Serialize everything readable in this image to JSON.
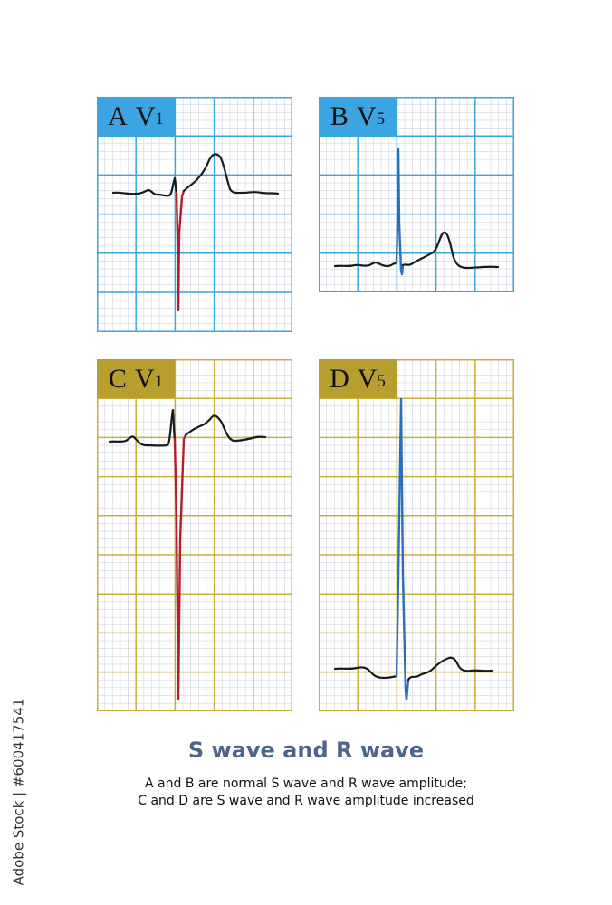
{
  "colors": {
    "blue_grid": "#3aa5e0",
    "blue_header": "#3aa5e0",
    "gold_grid": "#c9ae3a",
    "gold_header": "#b89e2e",
    "fine_grid": "#cfd3dc",
    "trace_black": "#1a1a1a",
    "trace_red": "#b0202c",
    "trace_blue": "#2a6fb8"
  },
  "panels": [
    {
      "id": "A",
      "letter": "A",
      "lead": "V",
      "lead_sub": "1",
      "theme": "blue",
      "wave": "normal S wave",
      "highlight_color": "red",
      "icon": "ecg-grid-icon"
    },
    {
      "id": "B",
      "letter": "B",
      "lead": "V",
      "lead_sub": "5",
      "theme": "blue",
      "wave": "normal R wave",
      "highlight_color": "blue",
      "icon": "ecg-grid-icon"
    },
    {
      "id": "C",
      "letter": "C",
      "lead": "V",
      "lead_sub": "1",
      "theme": "gold",
      "wave": "increased S wave",
      "highlight_color": "red",
      "icon": "ecg-grid-icon"
    },
    {
      "id": "D",
      "letter": "D",
      "lead": "V",
      "lead_sub": "5",
      "theme": "gold",
      "wave": "increased R wave",
      "highlight_color": "blue",
      "icon": "ecg-grid-icon"
    }
  ],
  "title": "S wave and R wave",
  "caption": {
    "line1": "A and B are normal S wave and R wave amplitude;",
    "line2": "C and D are S wave and R wave amplitude increased"
  },
  "watermark": "Adobe Stock | #600417541"
}
